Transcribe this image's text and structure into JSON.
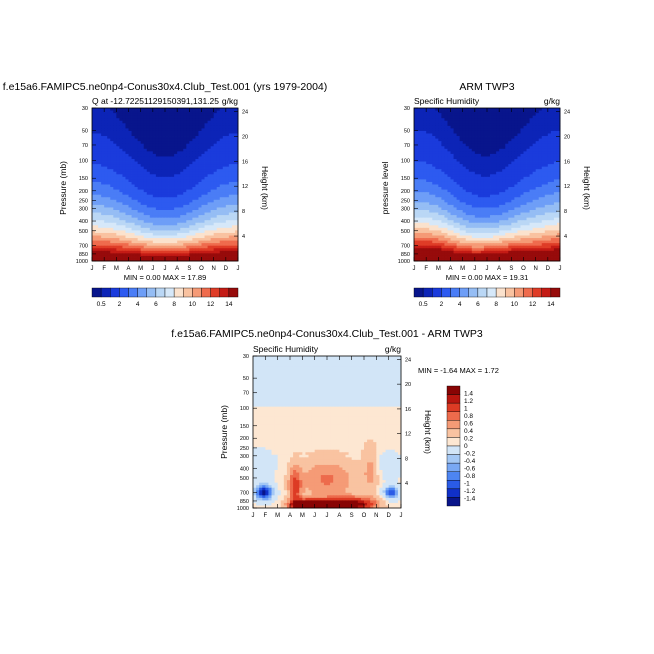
{
  "colors": {
    "seq": [
      "#08158c",
      "#0c24b7",
      "#1a3bdc",
      "#2d5af0",
      "#4a7df6",
      "#6e9ef7",
      "#95bdf4",
      "#bad7f5",
      "#d6e8f9",
      "#fbe2cd",
      "#f9c2a0",
      "#f59a76",
      "#ef6b4d",
      "#df3c27",
      "#c41b15",
      "#970b0b"
    ],
    "diff": [
      "#09158a",
      "#1030c8",
      "#2a5be6",
      "#4d85f2",
      "#79a8f4",
      "#a4c8f5",
      "#d2e5f7",
      "#fde7d2",
      "#f9c3a1",
      "#f59b76",
      "#ed6b4c",
      "#dd3b24",
      "#b8160f",
      "#880404"
    ]
  },
  "panel_a": {
    "title": "f.e15a6.FAMIPC5.ne0np4-Conus30x4.Club_Test.001 (yrs 1979-2004)",
    "left_string": "Q at -12.72251129150391,131.25",
    "right_string": "g/kg",
    "ylabel": "Pressure (mb)",
    "right_label": "Height (km)",
    "minmax": "MIN =  0.00 MAX =  17.89"
  },
  "panel_b": {
    "title": "ARM TWP3",
    "left_string": "Specific Humidity",
    "right_string": "g/kg",
    "ylabel": "pressure level",
    "right_label": "Height (km)",
    "minmax": "MIN =  0.00 MAX =  19.31"
  },
  "panel_c": {
    "title": "f.e15a6.FAMIPC5.ne0np4-Conus30x4.Club_Test.001 - ARM TWP3",
    "left_string": "Specific Humidity",
    "right_string": "g/kg",
    "ylabel": "Pressure (mb)",
    "right_label": "Height (km)",
    "minmax": "MIN =  -1.64 MAX =   1.72"
  },
  "chart_data": [
    {
      "type": "heatmap",
      "title": "f.e15a6.FAMIPC5.ne0np4-Conus30x4.Club_Test.001 (yrs 1979-2004)",
      "variable": "Q",
      "units": "g/kg",
      "xlabel": "",
      "ylabel": "Pressure (mb)",
      "y2label": "Height (km)",
      "x_ticks": [
        "J",
        "F",
        "M",
        "A",
        "M",
        "J",
        "J",
        "A",
        "S",
        "O",
        "N",
        "D",
        "J"
      ],
      "y_ticks": [
        "30",
        "50",
        "70",
        "100",
        "150",
        "200",
        "250",
        "300",
        "400",
        "500",
        "700",
        "850",
        "1000"
      ],
      "y_ticks_values": [
        30,
        50,
        70,
        100,
        150,
        200,
        250,
        300,
        400,
        500,
        700,
        850,
        1000
      ],
      "y2_ticks": [
        "4",
        "8",
        "12",
        "16",
        "20",
        "24"
      ],
      "ylim": [
        30,
        1000
      ],
      "min": 0.0,
      "max": 17.89,
      "colorbar_levels": [
        0.5,
        1,
        2,
        3,
        4,
        5,
        6,
        7,
        8,
        9,
        10,
        11,
        12,
        13,
        14
      ],
      "colorbar_tick_labels": [
        "0.5",
        "2",
        "4",
        "6",
        "8",
        "10",
        "12",
        "14"
      ]
    },
    {
      "type": "heatmap",
      "title": "ARM TWP3",
      "variable": "Specific Humidity",
      "units": "g/kg",
      "xlabel": "",
      "ylabel": "pressure level",
      "y2label": "Height (km)",
      "x_ticks": [
        "J",
        "F",
        "M",
        "A",
        "M",
        "J",
        "J",
        "A",
        "S",
        "O",
        "N",
        "D",
        "J"
      ],
      "y_ticks": [
        "30",
        "50",
        "70",
        "100",
        "150",
        "200",
        "250",
        "300",
        "400",
        "500",
        "700",
        "850",
        "1000"
      ],
      "y_ticks_values": [
        30,
        50,
        70,
        100,
        150,
        200,
        250,
        300,
        400,
        500,
        700,
        850,
        1000
      ],
      "y2_ticks": [
        "4",
        "8",
        "12",
        "16",
        "20",
        "24"
      ],
      "ylim": [
        30,
        1000
      ],
      "min": 0.0,
      "max": 19.31,
      "colorbar_levels": [
        0.5,
        1,
        2,
        3,
        4,
        5,
        6,
        7,
        8,
        9,
        10,
        11,
        12,
        13,
        14
      ],
      "colorbar_tick_labels": [
        "0.5",
        "2",
        "4",
        "6",
        "8",
        "10",
        "12",
        "14"
      ]
    },
    {
      "type": "heatmap",
      "title": "f.e15a6.FAMIPC5.ne0np4-Conus30x4.Club_Test.001 - ARM TWP3",
      "variable": "Specific Humidity",
      "units": "g/kg",
      "xlabel": "",
      "ylabel": "Pressure (mb)",
      "y2label": "Height (km)",
      "x_ticks": [
        "J",
        "F",
        "M",
        "A",
        "M",
        "J",
        "J",
        "A",
        "S",
        "O",
        "N",
        "D",
        "J"
      ],
      "y_ticks": [
        "30",
        "50",
        "70",
        "100",
        "150",
        "200",
        "250",
        "300",
        "400",
        "500",
        "700",
        "850",
        "1000"
      ],
      "y_ticks_values": [
        30,
        50,
        70,
        100,
        150,
        200,
        250,
        300,
        400,
        500,
        700,
        850,
        1000
      ],
      "y2_ticks": [
        "4",
        "8",
        "12",
        "16",
        "20",
        "24"
      ],
      "ylim": [
        30,
        1000
      ],
      "min": -1.64,
      "max": 1.72,
      "colorbar_levels": [
        -1.4,
        -1.2,
        -1,
        -0.8,
        -0.6,
        -0.4,
        -0.2,
        0,
        0.2,
        0.4,
        0.6,
        0.8,
        1,
        1.2,
        1.4
      ],
      "colorbar_tick_labels": [
        "1.4",
        "1.2",
        "1",
        "0.8",
        "0.6",
        "0.4",
        "0.2",
        "0",
        "-0.2",
        "-0.4",
        "-0.6",
        "-0.8",
        "-1",
        "-1.2",
        "-1.4"
      ]
    }
  ]
}
